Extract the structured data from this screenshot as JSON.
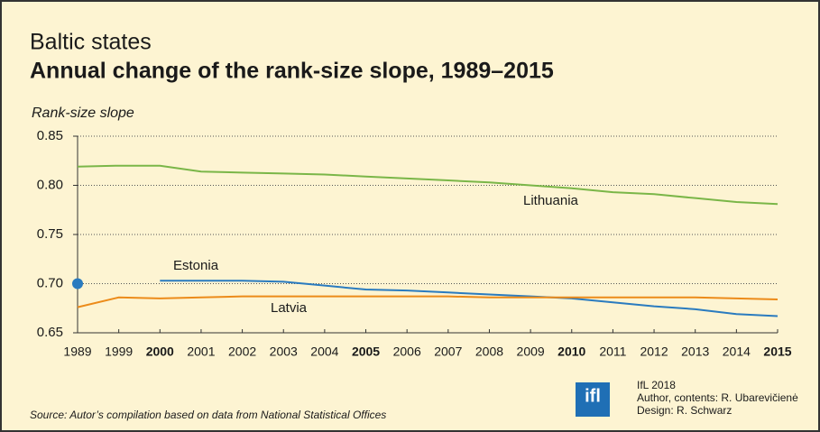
{
  "chart_data": {
    "type": "line",
    "supertitle": "Baltic states",
    "title": "Annual change of the rank-size slope, 1989–2015",
    "y_label": "Rank-size slope",
    "categories": [
      "1989",
      "1999",
      "2000",
      "2001",
      "2002",
      "2003",
      "2004",
      "2005",
      "2006",
      "2007",
      "2008",
      "2009",
      "2010",
      "2011",
      "2012",
      "2013",
      "2014",
      "2015"
    ],
    "bold_categories": [
      2,
      7,
      12,
      17
    ],
    "series": [
      {
        "name": "Lithuania",
        "color": "#7ab648",
        "values": [
          0.819,
          0.82,
          0.82,
          0.814,
          0.813,
          0.812,
          0.811,
          0.809,
          0.807,
          0.805,
          0.803,
          0.8,
          0.797,
          0.793,
          0.791,
          0.787,
          0.783,
          0.781
        ]
      },
      {
        "name": "Estonia",
        "color": "#2a7bbf",
        "values": [
          0.7,
          null,
          0.703,
          0.703,
          0.703,
          0.702,
          0.698,
          0.694,
          0.693,
          0.691,
          0.689,
          0.687,
          0.685,
          0.681,
          0.677,
          0.674,
          0.669,
          0.667
        ]
      },
      {
        "name": "Latvia",
        "color": "#ec8b1a",
        "values": [
          0.676,
          0.686,
          0.685,
          0.686,
          0.687,
          0.687,
          0.687,
          0.687,
          0.687,
          0.687,
          0.686,
          0.686,
          0.686,
          0.686,
          0.686,
          0.686,
          0.685,
          0.684
        ]
      }
    ],
    "ylim": [
      0.65,
      0.85
    ],
    "yticks": [
      0.65,
      {
        "value": 0.7,
        "label": "0.70"
      },
      0.75,
      {
        "value": 0.8,
        "label": "0.80"
      },
      0.85
    ],
    "grid": true,
    "source": "Source: Autor’s compilation based on data from National Statistical Offices",
    "logo": "ifl",
    "credits": [
      "IfL 2018",
      "Author, contents: R. Ubarevičienė",
      "Design: R. Schwarz"
    ]
  }
}
